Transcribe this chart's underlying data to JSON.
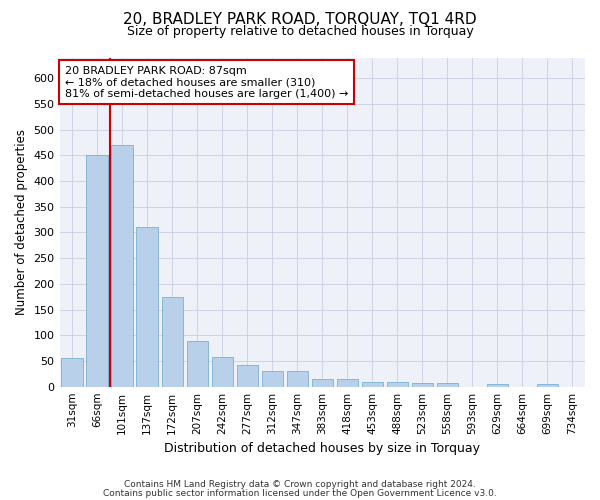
{
  "title": "20, BRADLEY PARK ROAD, TORQUAY, TQ1 4RD",
  "subtitle": "Size of property relative to detached houses in Torquay",
  "xlabel": "Distribution of detached houses by size in Torquay",
  "ylabel": "Number of detached properties",
  "categories": [
    "31sqm",
    "66sqm",
    "101sqm",
    "137sqm",
    "172sqm",
    "207sqm",
    "242sqm",
    "277sqm",
    "312sqm",
    "347sqm",
    "383sqm",
    "418sqm",
    "453sqm",
    "488sqm",
    "523sqm",
    "558sqm",
    "593sqm",
    "629sqm",
    "664sqm",
    "699sqm",
    "734sqm"
  ],
  "values": [
    55,
    450,
    470,
    310,
    175,
    88,
    58,
    42,
    30,
    30,
    15,
    15,
    10,
    10,
    8,
    8,
    0,
    5,
    0,
    5,
    0
  ],
  "bar_color": "#b8d0ea",
  "bar_edge_color": "#7aafd4",
  "vline_x": 1.5,
  "vline_color": "#cc0000",
  "annotation_text": "20 BRADLEY PARK ROAD: 87sqm\n← 18% of detached houses are smaller (310)\n81% of semi-detached houses are larger (1,400) →",
  "annotation_box_color": "#cc0000",
  "ylim": [
    0,
    640
  ],
  "yticks": [
    0,
    50,
    100,
    150,
    200,
    250,
    300,
    350,
    400,
    450,
    500,
    550,
    600
  ],
  "footer1": "Contains HM Land Registry data © Crown copyright and database right 2024.",
  "footer2": "Contains public sector information licensed under the Open Government Licence v3.0.",
  "bg_color": "#ffffff",
  "plot_bg_color": "#eef2f8"
}
